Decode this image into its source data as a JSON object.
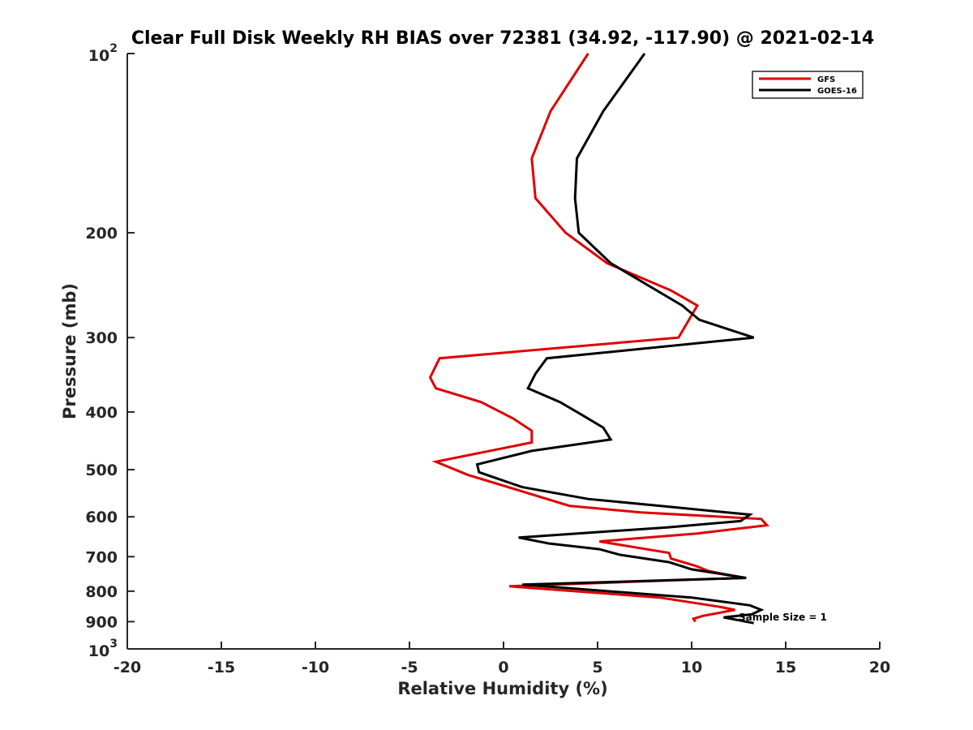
{
  "chart_data": {
    "type": "line",
    "title": "Clear Full Disk Weekly RH BIAS over 72381 (34.92, -117.90) @ 2021-02-14",
    "xlabel": "Relative Humidity (%)",
    "ylabel": "Pressure (mb)",
    "xlim": [
      -20,
      20
    ],
    "ylim": [
      100,
      1000
    ],
    "yscale": "log",
    "y_reversed": true,
    "grid": false,
    "legend_position": "top-right",
    "x_ticks": [
      "-20",
      "-15",
      "-10",
      "-5",
      "0",
      "5",
      "10",
      "15",
      "20"
    ],
    "y_ticks": [
      {
        "value": 100,
        "base": "10",
        "exp": "2"
      },
      {
        "value": 200,
        "label": "200"
      },
      {
        "value": 300,
        "label": "300"
      },
      {
        "value": 400,
        "label": "400"
      },
      {
        "value": 500,
        "label": "500"
      },
      {
        "value": 600,
        "label": "600"
      },
      {
        "value": 700,
        "label": "700"
      },
      {
        "value": 800,
        "label": "800"
      },
      {
        "value": 900,
        "label": "900"
      },
      {
        "value": 1000,
        "base": "10",
        "exp": "3"
      }
    ],
    "series": [
      {
        "name": "GFS",
        "color": "#e00000",
        "points": [
          [
            4.5,
            100
          ],
          [
            2.5,
            125
          ],
          [
            1.5,
            150
          ],
          [
            1.7,
            175
          ],
          [
            3.3,
            200
          ],
          [
            5.5,
            225
          ],
          [
            8.9,
            250
          ],
          [
            10.3,
            265
          ],
          [
            9.3,
            300
          ],
          [
            -3.4,
            325
          ],
          [
            -3.9,
            350
          ],
          [
            -3.6,
            365
          ],
          [
            -1.2,
            385
          ],
          [
            0.5,
            410
          ],
          [
            1.5,
            430
          ],
          [
            1.5,
            450
          ],
          [
            -3.6,
            485
          ],
          [
            -1.9,
            510
          ],
          [
            1.5,
            550
          ],
          [
            3.5,
            575
          ],
          [
            7.3,
            590
          ],
          [
            13.7,
            605
          ],
          [
            14.0,
            620
          ],
          [
            10.3,
            640
          ],
          [
            5.1,
            660
          ],
          [
            8.8,
            690
          ],
          [
            8.9,
            705
          ],
          [
            10.2,
            725
          ],
          [
            10.9,
            740
          ],
          [
            12.8,
            760
          ],
          [
            10.0,
            765
          ],
          [
            0.3,
            785
          ],
          [
            8.3,
            820
          ],
          [
            11.5,
            850
          ],
          [
            12.3,
            860
          ],
          [
            10.6,
            880
          ],
          [
            10.1,
            890
          ],
          [
            10.2,
            900
          ]
        ]
      },
      {
        "name": "GOES-16",
        "color": "#000000",
        "points": [
          [
            7.5,
            100
          ],
          [
            5.3,
            125
          ],
          [
            3.9,
            150
          ],
          [
            3.8,
            175
          ],
          [
            4.0,
            200
          ],
          [
            5.7,
            225
          ],
          [
            9.5,
            265
          ],
          [
            10.4,
            280
          ],
          [
            13.3,
            300
          ],
          [
            2.3,
            325
          ],
          [
            1.7,
            345
          ],
          [
            1.3,
            365
          ],
          [
            3.0,
            385
          ],
          [
            4.2,
            405
          ],
          [
            5.3,
            425
          ],
          [
            5.7,
            445
          ],
          [
            1.5,
            465
          ],
          [
            -1.4,
            490
          ],
          [
            -1.3,
            505
          ],
          [
            1.0,
            535
          ],
          [
            4.5,
            560
          ],
          [
            8.3,
            575
          ],
          [
            13.1,
            595
          ],
          [
            12.6,
            610
          ],
          [
            8.7,
            625
          ],
          [
            0.8,
            650
          ],
          [
            2.4,
            665
          ],
          [
            5.1,
            680
          ],
          [
            6.2,
            695
          ],
          [
            8.8,
            715
          ],
          [
            10.0,
            735
          ],
          [
            12.9,
            760
          ],
          [
            1.0,
            780
          ],
          [
            10.0,
            820
          ],
          [
            13.1,
            845
          ],
          [
            13.7,
            860
          ],
          [
            13.2,
            875
          ],
          [
            11.7,
            885
          ],
          [
            13.3,
            905
          ]
        ]
      }
    ],
    "annotations": [
      {
        "text": "Sample Size = 1",
        "x": 12.5,
        "y": 885
      }
    ]
  }
}
